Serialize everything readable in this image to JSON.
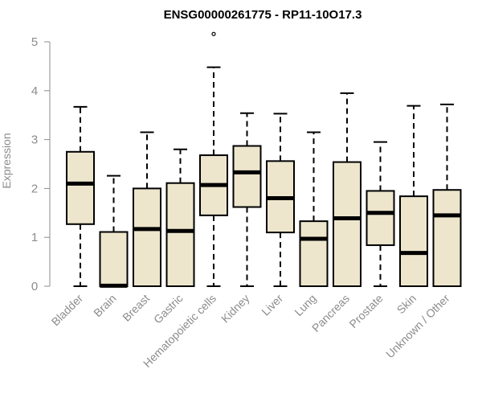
{
  "chart_data": {
    "type": "boxplot",
    "title": "ENSG00000261775 - RP11-10O17.3",
    "xlabel": "",
    "ylabel": "Expression",
    "ylim": [
      0,
      5
    ],
    "yticks": [
      "0",
      "1",
      "2",
      "3",
      "4",
      "5"
    ],
    "categories": [
      "Bladder",
      "Brain",
      "Breast",
      "Gastric",
      "Hematopoietic cells",
      "Kidney",
      "Liver",
      "Lung",
      "Pancreas",
      "Prostate",
      "Skin",
      "Unknown / Other"
    ],
    "boxes": [
      {
        "whisker_low": 0,
        "q1": 1.27,
        "median": 2.1,
        "q3": 2.75,
        "whisker_high": 3.67,
        "outliers": []
      },
      {
        "whisker_low": 0,
        "q1": 0,
        "median": 0.01,
        "q3": 1.11,
        "whisker_high": 2.26,
        "outliers": []
      },
      {
        "whisker_low": 0,
        "q1": 0,
        "median": 1.17,
        "q3": 2.0,
        "whisker_high": 3.15,
        "outliers": []
      },
      {
        "whisker_low": 0,
        "q1": 0,
        "median": 1.13,
        "q3": 2.11,
        "whisker_high": 2.8,
        "outliers": []
      },
      {
        "whisker_low": 0,
        "q1": 1.45,
        "median": 2.07,
        "q3": 2.68,
        "whisker_high": 4.48,
        "outliers": [
          5.16
        ]
      },
      {
        "whisker_low": 0,
        "q1": 1.62,
        "median": 2.33,
        "q3": 2.87,
        "whisker_high": 3.54,
        "outliers": []
      },
      {
        "whisker_low": 0,
        "q1": 1.1,
        "median": 1.8,
        "q3": 2.56,
        "whisker_high": 3.53,
        "outliers": []
      },
      {
        "whisker_low": 0,
        "q1": 0,
        "median": 0.97,
        "q3": 1.33,
        "whisker_high": 3.15,
        "outliers": []
      },
      {
        "whisker_low": 0,
        "q1": 0,
        "median": 1.39,
        "q3": 2.54,
        "whisker_high": 3.95,
        "outliers": []
      },
      {
        "whisker_low": 0,
        "q1": 0.84,
        "median": 1.5,
        "q3": 1.95,
        "whisker_high": 2.95,
        "outliers": []
      },
      {
        "whisker_low": 0,
        "q1": 0,
        "median": 0.68,
        "q3": 1.84,
        "whisker_high": 3.69,
        "outliers": []
      },
      {
        "whisker_low": 0,
        "q1": 0,
        "median": 1.45,
        "q3": 1.97,
        "whisker_high": 3.72,
        "outliers": []
      }
    ],
    "grid": false,
    "colors": {
      "box_fill": "#ede6cd",
      "box_stroke": "#000000",
      "median": "#000000",
      "axis": "#8c8c8c",
      "tick_text": "#8c8c8c"
    }
  }
}
